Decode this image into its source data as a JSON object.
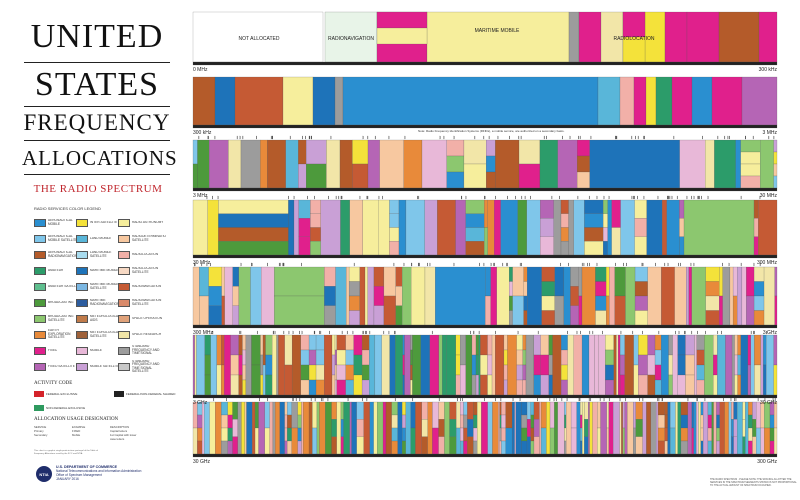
{
  "title": {
    "line1": "UNITED",
    "line2": "STATES",
    "line3": "FREQUENCY",
    "line4": "ALLOCATIONS",
    "subtitle": "THE RADIO SPECTRUM"
  },
  "legend": {
    "heading": "RADIO SERVICES COLOR LEGEND",
    "items": [
      {
        "label": "AERONAUTICAL MOBILE",
        "color": "#2a8fd0"
      },
      {
        "label": "INTER-SATELLITE",
        "color": "#f4e23a"
      },
      {
        "label": "RADIO ASTRONOMY",
        "color": "#f6ee9c"
      },
      {
        "label": "AERONAUTICAL MOBILE SATELLITE",
        "color": "#7fc6ea"
      },
      {
        "label": "LAND MOBILE",
        "color": "#59b6d9"
      },
      {
        "label": "RADIODETERMINATION SATELLITE",
        "color": "#f7c8a0"
      },
      {
        "label": "AERONAUTICAL RADIONAVIGATION",
        "color": "#b45b2a"
      },
      {
        "label": "LAND MOBILE SATELLITE",
        "color": "#a9dcef"
      },
      {
        "label": "RADIOLOCATION",
        "color": "#f2b0a8"
      },
      {
        "label": "AMATEUR",
        "color": "#2c9c6a"
      },
      {
        "label": "MARITIME MOBILE",
        "color": "#1e73b9"
      },
      {
        "label": "RADIOLOCATION SATELLITE",
        "color": "#f7d9c4"
      },
      {
        "label": "AMATEUR SATELLITE",
        "color": "#5fbf8f"
      },
      {
        "label": "MARITIME MOBILE SATELLITE",
        "color": "#7bb7e2"
      },
      {
        "label": "RADIONAVIGATION",
        "color": "#c55a34"
      },
      {
        "label": "BROADCASTING",
        "color": "#4d9a3c"
      },
      {
        "label": "MARITIME RADIONAVIGATION",
        "color": "#2d5d9f"
      },
      {
        "label": "RADIONAVIGATION SATELLITE",
        "color": "#d98a6a"
      },
      {
        "label": "BROADCASTING SATELLITE",
        "color": "#8cc76f"
      },
      {
        "label": "METEOROLOGICAL AIDS",
        "color": "#c07b4a"
      },
      {
        "label": "SPACE OPERATION",
        "color": "#e0a27a"
      },
      {
        "label": "EARTH EXPLORATION SATELLITE",
        "color": "#e88a3a"
      },
      {
        "label": "METEOROLOGICAL SATELLITE",
        "color": "#a0623a"
      },
      {
        "label": "SPACE RESEARCH",
        "color": "#f2e6a8"
      },
      {
        "label": "FIXED",
        "color": "#e0208c"
      },
      {
        "label": "MOBILE",
        "color": "#e8b8d8"
      },
      {
        "label": "STANDARD FREQUENCY AND TIME SIGNAL",
        "color": "#9c9c9c"
      },
      {
        "label": "FIXED SATELLITE",
        "color": "#b565b5"
      },
      {
        "label": "MOBILE SATELLITE",
        "color": "#c9a0d6"
      },
      {
        "label": "STANDARD FREQUENCY AND TIME SIGNAL SATELLITE",
        "color": "#c8c8c8"
      }
    ]
  },
  "activity": {
    "heading": "ACTIVITY CODE",
    "items": [
      {
        "label": "FEDERAL EXCLUSIVE",
        "color": "#d4232a"
      },
      {
        "label": "FEDERAL/NON-FEDERAL SHARED",
        "color": "#222222"
      },
      {
        "label": "NON-FEDERAL EXCLUSIVE",
        "color": "#2e9a5f"
      }
    ]
  },
  "usage": {
    "heading": "ALLOCATION USAGE DESIGNATION",
    "cols": [
      "SERVICE",
      "EXAMPLE",
      "DESCRIPTION"
    ],
    "rows": [
      [
        "Primary",
        "FIXED",
        "Capital letters"
      ],
      [
        "Secondary",
        "Mobile",
        "1st Capital with lower case letters"
      ]
    ]
  },
  "footer": {
    "fine": "This chart is a graphic single-point-in-time portrayal of the Table of Frequency Allocations used by the FCC and NTIA.",
    "seal": "NTIA",
    "dept1": "U.S. DEPARTMENT OF COMMERCE",
    "dept2": "National Telecommunications and Information Administration",
    "dept3": "Office of Spectrum Management",
    "date": "JANUARY 2016"
  },
  "bands": [
    {
      "start": "0 MHz",
      "end": "300 kHz"
    },
    {
      "start": "300 kHz",
      "end": "3 MHz"
    },
    {
      "start": "3 MHz",
      "end": "30 MHz"
    },
    {
      "start": "30 MHz",
      "end": "300 MHz"
    },
    {
      "start": "300 MHz",
      "end": "3 GHz"
    },
    {
      "start": "3 GHz",
      "end": "30 GHz"
    },
    {
      "start": "30 GHz",
      "end": "300 GHz"
    }
  ],
  "band1_labels": {
    "not_allocated": "NOT ALLOCATED",
    "radionavigation": "RADIONAVIGATION",
    "maritime": "MARITIME MOBILE",
    "radiolocation": "RADIOLOCATION"
  },
  "notes": {
    "band2": "Note: Radio Frequency Identification Systems (RFIDs), a mobile service, are authorized on a secondary basis.",
    "band1_end": "300 kHz",
    "band2_end": "3 MHz"
  },
  "bottom_notes": "THE RADIO SPECTRUM · PLEASE NOTE: THE SPACING ALLOTTED THE SERVICES IN THE SPECTRUM SEGMENTS SHOWN IS NOT PROPORTIONAL TO THE ACTUAL AMOUNT OF SPECTRUM OCCUPIED."
}
